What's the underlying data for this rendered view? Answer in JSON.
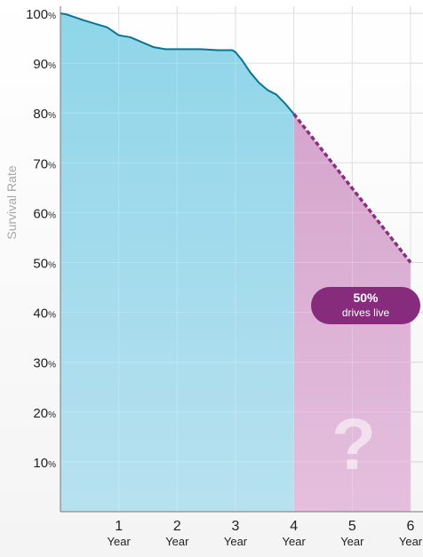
{
  "chart_data": {
    "type": "area",
    "ylabel": "Survival Rate",
    "xlim": [
      0,
      6
    ],
    "ylim": [
      0,
      100
    ],
    "y_ticks": [
      {
        "value": 10,
        "num": "10",
        "unit": "%"
      },
      {
        "value": 20,
        "num": "20",
        "unit": "%"
      },
      {
        "value": 30,
        "num": "30",
        "unit": "%"
      },
      {
        "value": 40,
        "num": "40",
        "unit": "%"
      },
      {
        "value": 50,
        "num": "50",
        "unit": "%"
      },
      {
        "value": 60,
        "num": "60",
        "unit": "%"
      },
      {
        "value": 70,
        "num": "70",
        "unit": "%"
      },
      {
        "value": 80,
        "num": "80",
        "unit": "%"
      },
      {
        "value": 90,
        "num": "90",
        "unit": "%"
      },
      {
        "value": 100,
        "num": "100",
        "unit": "%"
      }
    ],
    "x_ticks": [
      {
        "value": 1,
        "num": "1",
        "unit": "Year"
      },
      {
        "value": 2,
        "num": "2",
        "unit": "Year"
      },
      {
        "value": 3,
        "num": "3",
        "unit": "Year"
      },
      {
        "value": 4,
        "num": "4",
        "unit": "Year"
      },
      {
        "value": 5,
        "num": "5",
        "unit": "Year"
      },
      {
        "value": 6,
        "num": "6",
        "unit": "Year"
      }
    ],
    "grid": true,
    "observed": {
      "x": [
        0,
        0.1,
        0.25,
        0.4,
        0.6,
        0.8,
        1.0,
        1.2,
        1.4,
        1.6,
        1.8,
        2.0,
        2.2,
        2.4,
        2.7,
        2.85,
        2.95,
        3.0,
        3.1,
        3.25,
        3.4,
        3.55,
        3.7,
        3.85,
        4.0
      ],
      "y": [
        100,
        99.8,
        99.2,
        98.6,
        97.9,
        97.2,
        95.6,
        95.2,
        94.2,
        93.2,
        92.8,
        92.8,
        92.8,
        92.8,
        92.6,
        92.6,
        92.6,
        92.2,
        90.8,
        88.2,
        86.1,
        84.6,
        83.7,
        81.9,
        79.8
      ],
      "color": "#0a7493",
      "fill": "#8fd4e8"
    },
    "projected": {
      "x": [
        4,
        6
      ],
      "y": [
        79.8,
        50
      ],
      "color": "#8a2f7f",
      "fill": "#d6a2cc"
    },
    "annotation": {
      "value": "50%",
      "label": "drives live",
      "color": "#872c7d"
    },
    "unknown_symbol": "?"
  }
}
